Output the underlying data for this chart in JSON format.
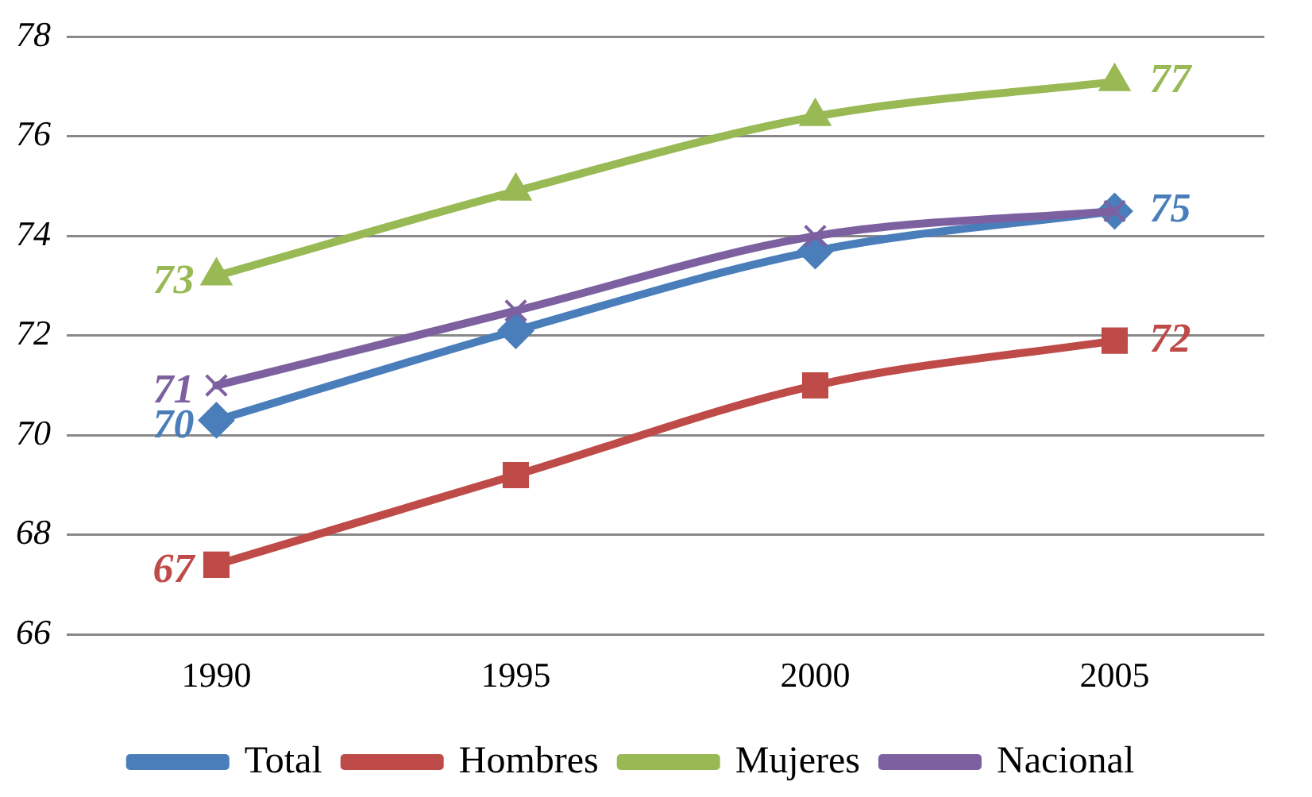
{
  "chart_data": {
    "type": "line",
    "categories": [
      "1990",
      "1995",
      "2000",
      "2005"
    ],
    "series": [
      {
        "name": "Total",
        "color": "#4a7ebb",
        "marker": "diamond",
        "values": [
          70.3,
          72.1,
          73.7,
          74.5
        ],
        "value_labels": [
          "70",
          null,
          null,
          "75"
        ]
      },
      {
        "name": "Hombres",
        "color": "#be4b48",
        "marker": "square",
        "values": [
          67.4,
          69.2,
          71.0,
          71.9
        ],
        "value_labels": [
          "67",
          null,
          null,
          "72"
        ]
      },
      {
        "name": "Mujeres",
        "color": "#98b954",
        "marker": "triangle",
        "values": [
          73.2,
          74.9,
          76.4,
          77.1
        ],
        "value_labels": [
          "73",
          null,
          null,
          "77"
        ]
      },
      {
        "name": "Nacional",
        "color": "#7d60a0",
        "marker": "cross",
        "values": [
          71.0,
          72.5,
          74.0,
          74.5
        ],
        "value_labels": [
          "71",
          null,
          null,
          null
        ]
      }
    ],
    "ylim": [
      66,
      78
    ],
    "yticks": [
      66,
      68,
      70,
      72,
      74,
      76,
      78
    ],
    "grid": "y",
    "legend": "bottom",
    "line_style": "solid"
  }
}
